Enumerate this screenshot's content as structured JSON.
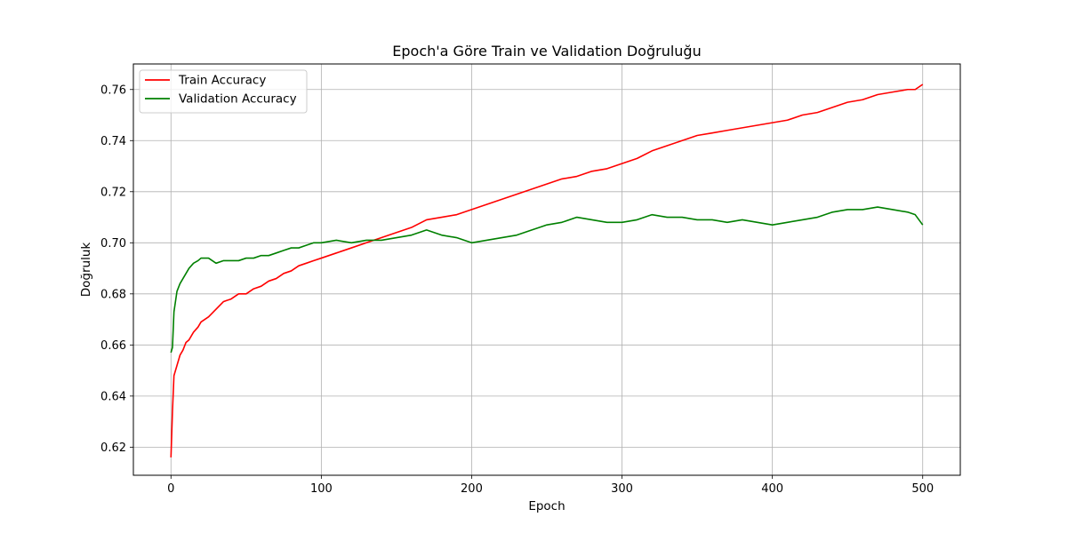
{
  "chart_data": {
    "type": "line",
    "title": "Epoch'a Göre Train ve Validation Doğruluğu",
    "xlabel": "Epoch",
    "ylabel": "Doğruluk",
    "xlim": [
      -25,
      525
    ],
    "ylim": [
      0.609,
      0.77
    ],
    "xticks": [
      0,
      100,
      200,
      300,
      400,
      500
    ],
    "yticks": [
      0.62,
      0.64,
      0.66,
      0.68,
      0.7,
      0.72,
      0.74,
      0.76
    ],
    "ytick_labels": [
      "0.62",
      "0.64",
      "0.66",
      "0.68",
      "0.70",
      "0.72",
      "0.74",
      "0.76"
    ],
    "grid": true,
    "legend_position": "top-left",
    "series": [
      {
        "name": "Train Accuracy",
        "color": "#ff0000",
        "x": [
          0,
          1,
          2,
          4,
          6,
          8,
          10,
          12,
          15,
          18,
          20,
          25,
          30,
          35,
          40,
          45,
          50,
          55,
          60,
          65,
          70,
          75,
          80,
          85,
          90,
          95,
          100,
          110,
          120,
          130,
          140,
          150,
          160,
          170,
          180,
          190,
          200,
          210,
          220,
          230,
          240,
          250,
          260,
          270,
          280,
          290,
          300,
          310,
          320,
          330,
          340,
          350,
          360,
          370,
          380,
          390,
          400,
          410,
          420,
          430,
          440,
          450,
          460,
          470,
          480,
          490,
          495,
          500
        ],
        "y": [
          0.616,
          0.634,
          0.648,
          0.652,
          0.656,
          0.658,
          0.661,
          0.662,
          0.665,
          0.667,
          0.669,
          0.671,
          0.674,
          0.677,
          0.678,
          0.68,
          0.68,
          0.682,
          0.683,
          0.685,
          0.686,
          0.688,
          0.689,
          0.691,
          0.692,
          0.693,
          0.694,
          0.696,
          0.698,
          0.7,
          0.702,
          0.704,
          0.706,
          0.709,
          0.71,
          0.711,
          0.713,
          0.715,
          0.717,
          0.719,
          0.721,
          0.723,
          0.725,
          0.726,
          0.728,
          0.729,
          0.731,
          0.733,
          0.736,
          0.738,
          0.74,
          0.742,
          0.743,
          0.744,
          0.745,
          0.746,
          0.747,
          0.748,
          0.75,
          0.751,
          0.753,
          0.755,
          0.756,
          0.758,
          0.759,
          0.76,
          0.76,
          0.762
        ]
      },
      {
        "name": "Validation Accuracy",
        "color": "#008000",
        "x": [
          0,
          1,
          2,
          4,
          6,
          8,
          10,
          12,
          15,
          18,
          20,
          25,
          30,
          35,
          40,
          45,
          50,
          55,
          60,
          65,
          70,
          75,
          80,
          85,
          90,
          95,
          100,
          110,
          120,
          130,
          140,
          150,
          160,
          170,
          180,
          190,
          200,
          210,
          220,
          230,
          240,
          250,
          260,
          270,
          280,
          290,
          300,
          310,
          320,
          330,
          340,
          350,
          360,
          370,
          380,
          390,
          400,
          410,
          420,
          430,
          440,
          450,
          460,
          470,
          480,
          490,
          495,
          500
        ],
        "y": [
          0.657,
          0.659,
          0.673,
          0.681,
          0.684,
          0.686,
          0.688,
          0.69,
          0.692,
          0.693,
          0.694,
          0.694,
          0.692,
          0.693,
          0.693,
          0.693,
          0.694,
          0.694,
          0.695,
          0.695,
          0.696,
          0.697,
          0.698,
          0.698,
          0.699,
          0.7,
          0.7,
          0.701,
          0.7,
          0.701,
          0.701,
          0.702,
          0.703,
          0.705,
          0.703,
          0.702,
          0.7,
          0.701,
          0.702,
          0.703,
          0.705,
          0.707,
          0.708,
          0.71,
          0.709,
          0.708,
          0.708,
          0.709,
          0.711,
          0.71,
          0.71,
          0.709,
          0.709,
          0.708,
          0.709,
          0.708,
          0.707,
          0.708,
          0.709,
          0.71,
          0.712,
          0.713,
          0.713,
          0.714,
          0.713,
          0.712,
          0.711,
          0.707
        ]
      }
    ]
  }
}
